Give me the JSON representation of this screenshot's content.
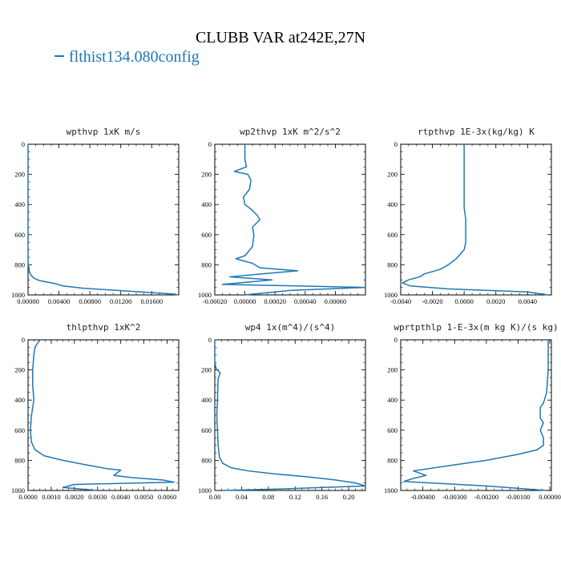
{
  "title": "CLUBB VAR at242E,27N",
  "legend": {
    "label": "flthist134.080config",
    "color": "#1f77b4"
  },
  "chart_data": [
    {
      "type": "line",
      "title": "wpthvp  1xK m/s",
      "xlim": [
        0,
        0.0195
      ],
      "ylim": [
        1000,
        0
      ],
      "xticks": [
        0,
        0.004,
        0.008,
        0.012,
        0.016
      ],
      "xtick_labels": [
        "0.00000",
        "0.00400",
        "0.00800",
        "0.01200",
        "0.01600"
      ],
      "yticks": [
        0,
        200,
        400,
        600,
        800,
        1000
      ],
      "ytick_labels": [
        "0",
        "200",
        "400",
        "600",
        "800",
        "1000"
      ],
      "series": [
        {
          "color": "#1f77b4",
          "x": [
            0,
            0,
            0,
            0,
            0,
            0.0001,
            0.0002,
            0.0004,
            0.0008,
            0.0015,
            0.0025,
            0.0035,
            0.0045,
            0.007,
            0.01,
            0.013,
            0.016,
            0.0185,
            0.0195
          ],
          "y": [
            0,
            200,
            400,
            600,
            780,
            820,
            850,
            870,
            890,
            905,
            915,
            925,
            940,
            955,
            965,
            975,
            985,
            993,
            1000
          ]
        }
      ]
    },
    {
      "type": "line",
      "title": "wp2thvp  1xK m^2/s^2",
      "xlim": [
        -0.0002,
        0.0008
      ],
      "ylim": [
        1000,
        0
      ],
      "xticks": [
        -0.0002,
        0,
        0.0002,
        0.0004,
        0.0006
      ],
      "xtick_labels": [
        "-0.00020",
        "0.00000",
        "0.00020",
        "0.00040",
        "0.00060"
      ],
      "yticks": [
        0,
        200,
        400,
        600,
        800,
        1000
      ],
      "ytick_labels": [
        "0",
        "200",
        "400",
        "600",
        "800",
        "1000"
      ],
      "series": [
        {
          "color": "#1f77b4",
          "x": [
            0,
            0,
            1e-05,
            -7e-05,
            2e-05,
            4e-05,
            3e-05,
            -1e-05,
            0.0,
            4e-05,
            8e-05,
            0.0001,
            5e-05,
            6e-05,
            5e-05,
            0.0,
            -6e-05,
            5e-05,
            0.0001,
            0.00035,
            0.00012,
            -0.0001,
            0.00018,
            -0.00015,
            0.0008,
            0.0003,
            0.0
          ],
          "y": [
            0,
            100,
            150,
            180,
            200,
            240,
            300,
            350,
            400,
            430,
            470,
            500,
            550,
            600,
            680,
            740,
            760,
            790,
            820,
            840,
            860,
            880,
            900,
            930,
            950,
            970,
            1000
          ]
        }
      ]
    },
    {
      "type": "line",
      "title": "rtpthvp  1E-3x(kg/kg) K",
      "xlim": [
        -0.004,
        0.0055
      ],
      "ylim": [
        1000,
        0
      ],
      "xticks": [
        -0.004,
        -0.002,
        0,
        0.002,
        0.004
      ],
      "xtick_labels": [
        "-0.0040",
        "-0.0020",
        "0.0000",
        "0.0020",
        "0.0040"
      ],
      "yticks": [
        0,
        200,
        400,
        600,
        800,
        1000
      ],
      "ytick_labels": [
        "0",
        "200",
        "400",
        "600",
        "800",
        "1000"
      ],
      "series": [
        {
          "color": "#1f77b4",
          "x": [
            0,
            0,
            0,
            0.0001,
            0.0001,
            0.0001,
            0.0,
            -0.0005,
            -0.001,
            -0.0015,
            -0.0025,
            -0.0028,
            -0.0035,
            -0.0039,
            -0.0034,
            -0.001,
            0.004,
            0.0053
          ],
          "y": [
            0,
            200,
            420,
            500,
            600,
            650,
            700,
            760,
            800,
            830,
            860,
            880,
            900,
            920,
            940,
            960,
            980,
            1000
          ]
        }
      ]
    },
    {
      "type": "line",
      "title": "thlpthvp  1xK^2",
      "xlim": [
        0,
        0.0065
      ],
      "ylim": [
        1000,
        0
      ],
      "xticks": [
        0,
        0.001,
        0.002,
        0.003,
        0.004,
        0.005,
        0.006
      ],
      "xtick_labels": [
        "0.0000",
        "0.0010",
        "0.0020",
        "0.0030",
        "0.0040",
        "0.0050",
        "0.0060"
      ],
      "yticks": [
        0,
        200,
        400,
        600,
        800,
        1000
      ],
      "ytick_labels": [
        "0",
        "200",
        "400",
        "600",
        "800",
        "1000"
      ],
      "series": [
        {
          "color": "#1f77b4",
          "x": [
            0.0005,
            0.0003,
            0.00025,
            0.0002,
            0.0002,
            0.00025,
            0.00015,
            0.0001,
            0.00015,
            0.0003,
            0.0007,
            0.0015,
            0.0025,
            0.0034,
            0.004,
            0.0037,
            0.0045,
            0.0058,
            0.0063,
            0.002,
            0.0015,
            0.003
          ],
          "y": [
            0,
            50,
            100,
            200,
            300,
            400,
            500,
            600,
            680,
            730,
            770,
            800,
            830,
            855,
            865,
            900,
            915,
            930,
            945,
            960,
            980,
            1000
          ]
        }
      ]
    },
    {
      "type": "line",
      "title": "wp4  1x(m^4)/(s^4)",
      "xlim": [
        0,
        0.225
      ],
      "ylim": [
        1000,
        0
      ],
      "xticks": [
        0,
        0.04,
        0.08,
        0.12,
        0.16,
        0.2
      ],
      "xtick_labels": [
        "0.00",
        "0.04",
        "0.08",
        "0.12",
        "0.16",
        "0.20"
      ],
      "yticks": [
        0,
        200,
        400,
        600,
        800,
        1000
      ],
      "ytick_labels": [
        "0",
        "200",
        "400",
        "600",
        "800",
        "1000"
      ],
      "series": [
        {
          "color": "#1f77b4",
          "x": [
            0,
            0,
            0.002,
            0.008,
            0.005,
            0.004,
            0.003,
            0.004,
            0.005,
            0.007,
            0.012,
            0.025,
            0.05,
            0.09,
            0.14,
            0.18,
            0.21,
            0.225,
            0.1,
            0.01
          ],
          "y": [
            0,
            150,
            190,
            220,
            260,
            400,
            500,
            600,
            700,
            780,
            820,
            850,
            870,
            890,
            910,
            930,
            950,
            970,
            990,
            1000
          ]
        }
      ]
    },
    {
      "type": "line",
      "title": "wprtpthlp  1-E-3x(m kg K)/(s kg)",
      "xlim": [
        -0.0047,
        5e-05
      ],
      "ylim": [
        1000,
        0
      ],
      "xticks": [
        -0.004,
        -0.003,
        -0.002,
        -0.001,
        0
      ],
      "xtick_labels": [
        "-0.00400",
        "-0.00300",
        "-0.00200",
        "-0.00100",
        "0.00000"
      ],
      "yticks": [
        0,
        200,
        400,
        600,
        800,
        1000
      ],
      "ytick_labels": [
        "0",
        "200",
        "400",
        "600",
        "800",
        "1000"
      ],
      "series": [
        {
          "color": "#1f77b4",
          "x": [
            -5e-05,
            -5e-05,
            -0.0001,
            -0.0002,
            -0.0003,
            -0.0003,
            -0.0002,
            -0.0003,
            -0.0002,
            -0.0002,
            -0.0004,
            -0.001,
            -0.002,
            -0.003,
            -0.0043,
            -0.0039,
            -0.0043,
            -0.0046,
            -0.002,
            -0.0001
          ],
          "y": [
            0,
            200,
            350,
            420,
            450,
            520,
            550,
            600,
            650,
            700,
            730,
            760,
            800,
            830,
            870,
            900,
            920,
            940,
            970,
            1000
          ]
        }
      ]
    }
  ]
}
